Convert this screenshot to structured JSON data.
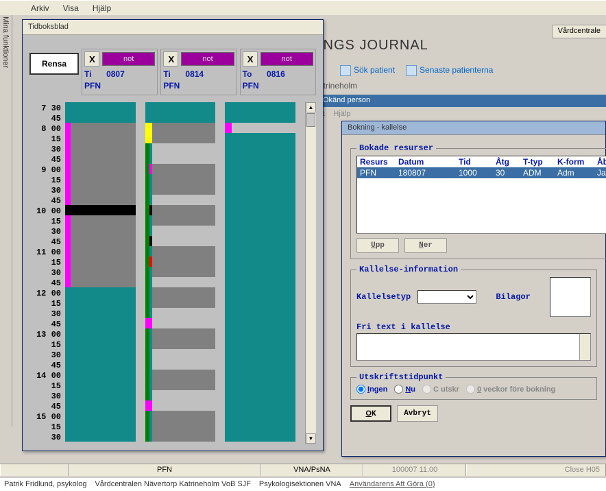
{
  "menubar": {
    "arkiv": "Arkiv",
    "visa": "Visa",
    "hjalp": "Hjälp"
  },
  "left_label": "Mina funktioner",
  "journal": {
    "title": "INGS JOURNAL",
    "sok_patient": "Sök patient",
    "senaste": "Senaste patienterna",
    "field": "atrineholm",
    "person_bar": "Okänd person",
    "small1": "gt",
    "small2": "Hjälp"
  },
  "vard_btn": "Vårdcentrale",
  "tidbok": {
    "title": "Tidboksblad",
    "rensa": "Rensa",
    "cols": [
      {
        "x": "X",
        "not": "not",
        "day": "Ti",
        "date": "0807",
        "res": "PFN"
      },
      {
        "x": "X",
        "not": "not",
        "day": "Ti",
        "date": "0814",
        "res": "PFN"
      },
      {
        "x": "X",
        "not": "not",
        "day": "To",
        "date": "0816",
        "res": "PFN"
      }
    ],
    "times": [
      "7 30",
      "45",
      "8 00",
      "15",
      "30",
      "45",
      "9 00",
      "15",
      "30",
      "45",
      "10 00",
      "15",
      "30",
      "45",
      "11 00",
      "15",
      "30",
      "45",
      "12 00",
      "15",
      "30",
      "45",
      "13 00",
      "15",
      "30",
      "45",
      "14 00",
      "15",
      "30",
      "45",
      "15 00",
      "15",
      "30"
    ],
    "colors": {
      "teal": "#128a8a",
      "gray": "#808080",
      "magenta": "#ff00ff",
      "black": "#000000",
      "green": "#008000",
      "yellow": "#ffff00",
      "red": "#ff0000"
    }
  },
  "bokning": {
    "title": "Bokning - kallelse",
    "resurser_legend": "Bokade resurser",
    "res_headers": [
      "Resurs",
      "Datum",
      "Tid",
      "Åtg",
      "T-typ",
      "K-form",
      "Åb"
    ],
    "res_widths": [
      56,
      88,
      54,
      40,
      50,
      58,
      24
    ],
    "res_row": [
      "PFN",
      "180807",
      "1000",
      "30",
      "ADM",
      "Adm",
      "Ja"
    ],
    "upp": "Upp",
    "ner": "Ner",
    "kallelse_legend": "Kallelse-information",
    "kallelsetyp": "Kallelsetyp",
    "bilagor": "Bilagor",
    "fritext": "Fri text i kallelse",
    "utskrift_legend": "Utskriftstidpunkt",
    "radio_ingen": "Ingen",
    "radio_nu": "Nu",
    "radio_cutskr": "C utskr",
    "radio_veckor": "0 veckor före bokning",
    "ok": "OK",
    "avbryt": "Avbryt"
  },
  "statusbar": {
    "pfn": "PFN",
    "vna": "VNA/PsNA",
    "time": "100007  11.00",
    "close": "Close H05"
  },
  "footer": {
    "name": "Patrik Fridlund, psykolog",
    "vc": "Vårdcentralen Nävertorp Katrineholm VoB SJF",
    "psyk": "Psykologisektionen VNA",
    "attgora": "Användarens Att Göra (0)"
  }
}
